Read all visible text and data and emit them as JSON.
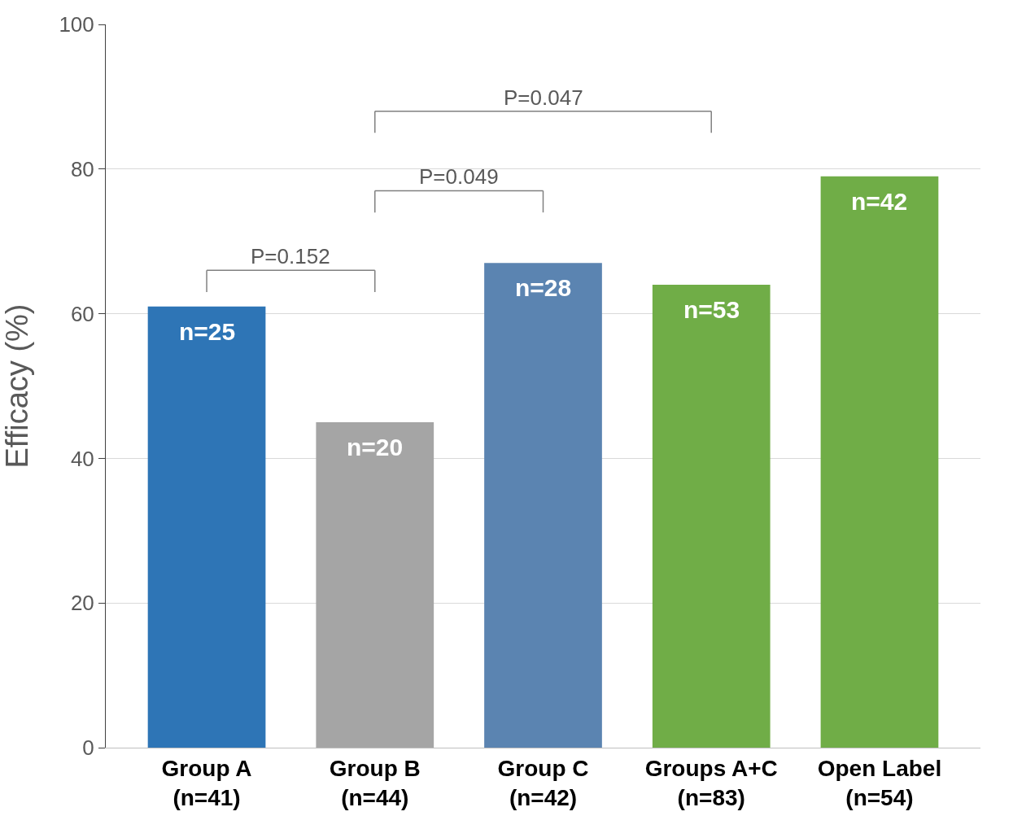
{
  "chart_data": {
    "type": "bar",
    "ylabel": "Efficacy (%)",
    "categories": [
      "Group A\n(n=41)",
      "Group B\n(n=44)",
      "Group C\n(n=42)",
      "Groups A+C\n(n=83)",
      "Open Label\n(n=54)"
    ],
    "values": [
      61,
      45,
      67,
      64,
      79
    ],
    "colors": [
      "#2e75b6",
      "#a5a5a5",
      "#5b84b1",
      "#70ad47",
      "#70ad47"
    ],
    "ylim": [
      0,
      100
    ],
    "yticks": [
      0,
      20,
      40,
      60,
      80,
      100
    ],
    "grid": "y",
    "annotations": [
      {
        "text": "n=25",
        "x": "Group A\n(n=41)",
        "y": 61
      },
      {
        "text": "n=20",
        "x": "Group B\n(n=44)",
        "y": 45
      },
      {
        "text": "n=28",
        "x": "Group C\n(n=42)",
        "y": 67
      },
      {
        "text": "n=53",
        "x": "Groups A+C\n(n=83)",
        "y": 64
      },
      {
        "text": "n=42",
        "x": "Open Label\n(n=54)",
        "y": 79
      },
      "P=0.152",
      "P=0.049",
      "P=0.047"
    ]
  }
}
